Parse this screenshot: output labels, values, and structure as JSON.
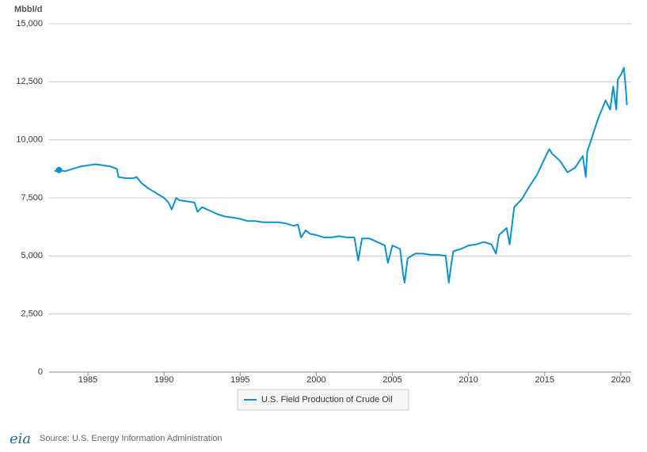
{
  "chart_data": {
    "type": "line",
    "y_label": "Mbbl/d",
    "x": [
      1982.8,
      1983.1,
      1983.5,
      1984,
      1984.5,
      1985,
      1985.5,
      1986,
      1986.5,
      1986.9,
      1987,
      1987.5,
      1988,
      1988.2,
      1988.5,
      1989,
      1989.5,
      1990,
      1990.3,
      1990.5,
      1990.8,
      1991,
      1991.5,
      1992,
      1992.2,
      1992.5,
      1993,
      1993.5,
      1994,
      1994.5,
      1995,
      1995.5,
      1996,
      1996.5,
      1997,
      1997.5,
      1998,
      1998.5,
      1998.8,
      1999,
      1999.3,
      1999.6,
      2000,
      2000.5,
      2001,
      2001.5,
      2002,
      2002.5,
      2002.75,
      2003,
      2003.5,
      2004,
      2004.5,
      2004.7,
      2005,
      2005.5,
      2005.7,
      2005.8,
      2006,
      2006.5,
      2007,
      2007.5,
      2008,
      2008.5,
      2008.7,
      2008.9,
      2009,
      2009.5,
      2010,
      2010.5,
      2011,
      2011.5,
      2011.8,
      2012,
      2012.5,
      2012.7,
      2013,
      2013.5,
      2014,
      2014.5,
      2015,
      2015.3,
      2015.5,
      2016,
      2016.5,
      2017,
      2017.5,
      2017.7,
      2017.8,
      2018,
      2018.5,
      2019,
      2019.3,
      2019.5,
      2019.7,
      2019.8,
      2020,
      2020.2,
      2020.35,
      2020.4
    ],
    "series": [
      {
        "name": "U.S. Field Production of Crude Oil",
        "color": "#0b93d1",
        "values": [
          8650,
          8700,
          8650,
          8750,
          8850,
          8900,
          8950,
          8900,
          8850,
          8750,
          8400,
          8350,
          8350,
          8400,
          8150,
          7900,
          7700,
          7500,
          7300,
          7000,
          7500,
          7400,
          7350,
          7300,
          6900,
          7100,
          6950,
          6800,
          6700,
          6650,
          6600,
          6500,
          6500,
          6450,
          6450,
          6450,
          6400,
          6300,
          6350,
          5800,
          6100,
          5950,
          5900,
          5800,
          5800,
          5850,
          5800,
          5800,
          4800,
          5750,
          5750,
          5600,
          5450,
          4700,
          5450,
          5300,
          4200,
          3850,
          4900,
          5100,
          5100,
          5050,
          5050,
          5000,
          3850,
          4800,
          5200,
          5300,
          5450,
          5500,
          5600,
          5500,
          5100,
          5900,
          6200,
          5500,
          7100,
          7450,
          8000,
          8500,
          9200,
          9600,
          9400,
          9100,
          8600,
          8800,
          9300,
          8400,
          9500,
          9900,
          10900,
          11700,
          11300,
          12300,
          11300,
          12600,
          12800,
          13100,
          12000,
          11500
        ]
      }
    ],
    "xlim": [
      1982.45,
      2020.68
    ],
    "xticks": [
      1985,
      1990,
      1995,
      2000,
      2005,
      2010,
      2015,
      2020
    ],
    "ylim": [
      0,
      15000
    ],
    "yticks": [
      0,
      {
        "value": 2500,
        "label": "2,500"
      },
      {
        "value": 5000,
        "label": "5,000"
      },
      {
        "value": 7500,
        "label": "7,500"
      },
      {
        "value": 10000,
        "label": "10,000"
      },
      {
        "value": 12500,
        "label": "12,500"
      },
      {
        "value": 15000,
        "label": "15,000"
      }
    ],
    "grid": true,
    "source": "Source: U.S. Energy Information Administration",
    "logo": "eia"
  }
}
